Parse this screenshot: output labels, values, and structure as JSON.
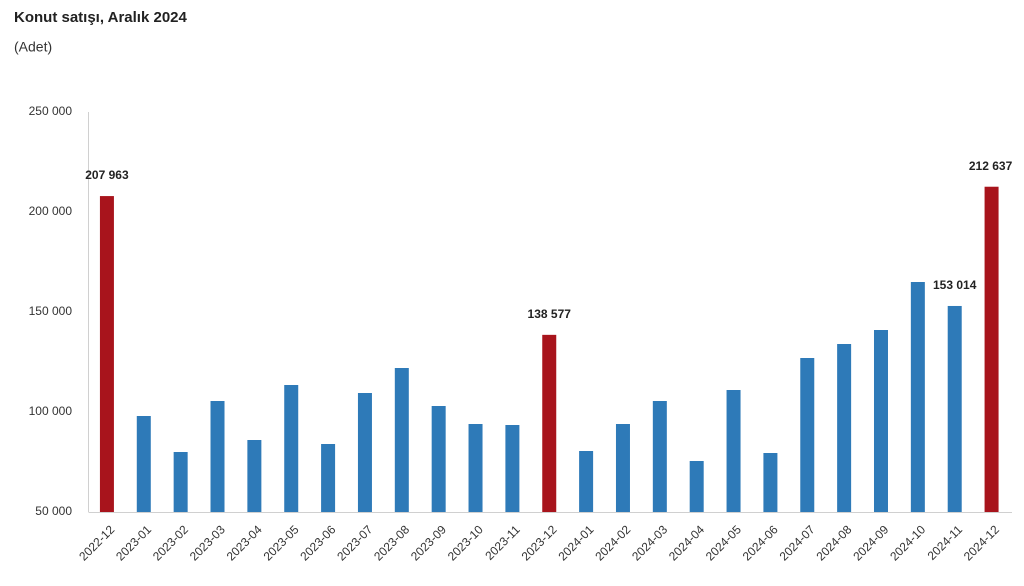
{
  "chart_data": {
    "type": "bar",
    "title": "Konut satışı, Aralık 2024",
    "subtitle": "(Adet)",
    "categories": [
      "2022-12",
      "2023-01",
      "2023-02",
      "2023-03",
      "2023-04",
      "2023-05",
      "2023-06",
      "2023-07",
      "2023-08",
      "2023-09",
      "2023-10",
      "2023-11",
      "2023-12",
      "2024-01",
      "2024-02",
      "2024-03",
      "2024-04",
      "2024-05",
      "2024-06",
      "2024-07",
      "2024-08",
      "2024-09",
      "2024-10",
      "2024-11",
      "2024-12"
    ],
    "values": [
      207963,
      98000,
      80000,
      105500,
      86000,
      113500,
      84000,
      109500,
      122000,
      103000,
      94000,
      93500,
      138577,
      80500,
      94000,
      105500,
      75500,
      111000,
      79500,
      127000,
      134000,
      141000,
      165000,
      153014,
      212637
    ],
    "value_labels": [
      "207 963",
      null,
      null,
      null,
      null,
      null,
      null,
      null,
      null,
      null,
      null,
      null,
      "138 577",
      null,
      null,
      null,
      null,
      null,
      null,
      null,
      null,
      null,
      null,
      "153 014",
      "212 637"
    ],
    "colors": [
      "#a8141c",
      "#2e7ab8",
      "#2e7ab8",
      "#2e7ab8",
      "#2e7ab8",
      "#2e7ab8",
      "#2e7ab8",
      "#2e7ab8",
      "#2e7ab8",
      "#2e7ab8",
      "#2e7ab8",
      "#2e7ab8",
      "#a8141c",
      "#2e7ab8",
      "#2e7ab8",
      "#2e7ab8",
      "#2e7ab8",
      "#2e7ab8",
      "#2e7ab8",
      "#2e7ab8",
      "#2e7ab8",
      "#2e7ab8",
      "#2e7ab8",
      "#2e7ab8",
      "#a8141c"
    ],
    "ylim": [
      50000,
      250000
    ],
    "yticks": [
      {
        "value": 50000,
        "label": "50 000"
      },
      {
        "value": 100000,
        "label": "100 000"
      },
      {
        "value": 150000,
        "label": "150 000"
      },
      {
        "value": 200000,
        "label": "200 000"
      },
      {
        "value": 250000,
        "label": "250 000"
      }
    ],
    "grid": false
  }
}
